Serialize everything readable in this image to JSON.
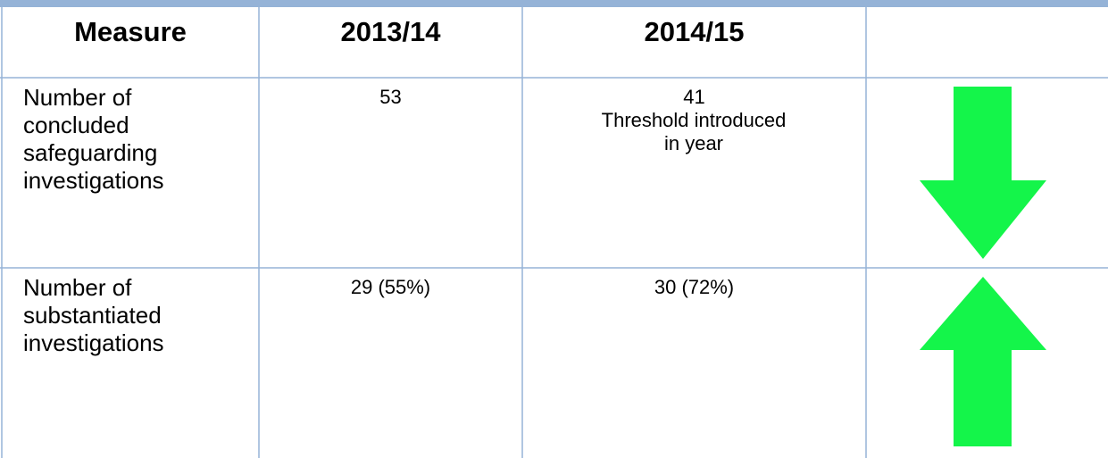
{
  "table": {
    "header": [
      "Measure",
      "2013/14",
      "2014/15"
    ],
    "rows": [
      {
        "measure": "Number of concluded safeguarding investigations",
        "y2013": "53",
        "y2014": "41",
        "note": "Threshold introduced in year"
      },
      {
        "measure": "Number of substantiated investigations",
        "y2013": "29 (55%)",
        "y2014": "30 (72%)"
      }
    ]
  }
}
